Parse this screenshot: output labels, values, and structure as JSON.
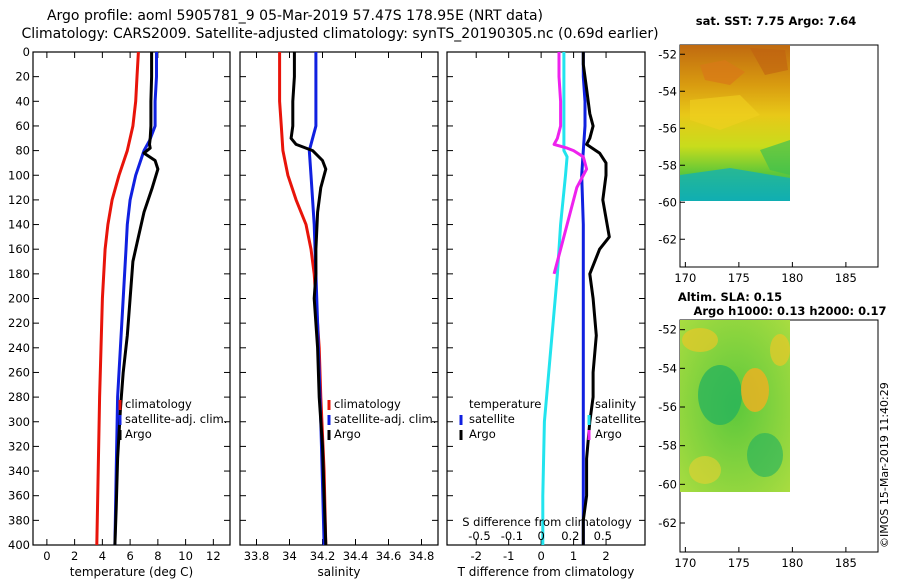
{
  "title_line1": "Argo profile: aoml 5905781_9 05-Mar-2019 57.47S 178.95E (NRT data)",
  "title_line2": "Climatology: CARS2009. Satellite-adjusted climatology: synTS_20190305.nc (0.69d earlier)",
  "credit": "©IMOS 15-Mar-2019 11:40:29",
  "colors": {
    "climatology": "#e8140a",
    "satellite_adj": "#1020e0",
    "argo": "#000000",
    "s_sat": "#22e4ee",
    "s_argo": "#ee22ee"
  },
  "chart_data": [
    {
      "type": "line",
      "name": "temperature-profile",
      "xlabel": "temperature (deg C)",
      "xlim": [
        -1,
        13.2
      ],
      "xticks": [
        0,
        2,
        4,
        6,
        8,
        10,
        12
      ],
      "xtick_labels": [
        "0",
        "2",
        "4",
        "6",
        "8",
        "10",
        "12"
      ],
      "ylim": [
        0,
        400
      ],
      "yticks": [
        0,
        20,
        40,
        60,
        80,
        100,
        120,
        140,
        160,
        180,
        200,
        220,
        240,
        260,
        280,
        300,
        320,
        340,
        360,
        380,
        400
      ],
      "ytick_labels": [
        "0",
        "20",
        "40",
        "60",
        "80",
        "100",
        "120",
        "140",
        "160",
        "180",
        "200",
        "220",
        "240",
        "260",
        "280",
        "300",
        "320",
        "340",
        "360",
        "380",
        "400"
      ],
      "legend": [
        "climatology",
        "satellite-adj. clim.",
        "Argo"
      ],
      "series": [
        {
          "name": "climatology",
          "color": "#e8140a",
          "x": [
            6.6,
            6.5,
            6.4,
            6.3,
            6.2,
            5.8,
            5.2,
            4.7,
            4.4,
            4.2,
            4.0,
            3.9,
            3.8,
            3.7,
            3.6
          ],
          "y": [
            0,
            20,
            40,
            50,
            60,
            80,
            100,
            120,
            140,
            160,
            200,
            240,
            280,
            340,
            400
          ]
        },
        {
          "name": "satellite-adj. clim.",
          "color": "#1020e0",
          "x": [
            7.9,
            7.9,
            7.8,
            7.8,
            7.4,
            7.0,
            6.4,
            6.0,
            5.8,
            5.7,
            5.5,
            5.3,
            5.1,
            5.0,
            4.9
          ],
          "y": [
            0,
            20,
            40,
            60,
            72,
            80,
            100,
            120,
            140,
            160,
            200,
            240,
            280,
            340,
            400
          ]
        },
        {
          "name": "Argo",
          "color": "#000000",
          "x": [
            7.55,
            7.55,
            7.5,
            7.5,
            7.45,
            7.4,
            7.45,
            7.0,
            7.8,
            8.0,
            7.6,
            7.0,
            6.6,
            6.2,
            6.0,
            5.8,
            5.5,
            5.3,
            5.1,
            5.0,
            4.9
          ],
          "y": [
            0,
            20,
            40,
            60,
            70,
            75,
            78,
            82,
            88,
            95,
            110,
            130,
            150,
            170,
            200,
            230,
            260,
            290,
            330,
            370,
            400
          ]
        }
      ]
    },
    {
      "type": "line",
      "name": "salinity-profile",
      "xlabel": "salinity",
      "xlim": [
        33.7,
        34.9
      ],
      "xticks": [
        33.8,
        34.0,
        34.2,
        34.4,
        34.6,
        34.8
      ],
      "xtick_labels": [
        "33.8",
        "34",
        "34.2",
        "34.4",
        "34.6",
        "34.8"
      ],
      "ylim": [
        0,
        400
      ],
      "legend": [
        "climatology",
        "satellite-adj. clim.",
        "Argo"
      ],
      "series": [
        {
          "name": "climatology",
          "color": "#e8140a",
          "x": [
            33.94,
            33.94,
            33.94,
            33.95,
            33.96,
            33.99,
            34.04,
            34.1,
            34.13,
            34.15,
            34.16,
            34.18,
            34.19,
            34.21,
            34.22
          ],
          "y": [
            0,
            20,
            40,
            60,
            80,
            100,
            120,
            140,
            160,
            180,
            200,
            240,
            280,
            340,
            400
          ]
        },
        {
          "name": "satellite-adj. clim.",
          "color": "#1020e0",
          "x": [
            34.16,
            34.16,
            34.16,
            34.16,
            34.14,
            34.12,
            34.13,
            34.15,
            34.16,
            34.17,
            34.18,
            34.19,
            34.2,
            34.21
          ],
          "y": [
            0,
            20,
            40,
            60,
            70,
            80,
            100,
            140,
            180,
            220,
            260,
            300,
            350,
            400
          ]
        },
        {
          "name": "Argo",
          "color": "#000000",
          "x": [
            34.03,
            34.03,
            34.02,
            34.02,
            34.01,
            34.04,
            34.14,
            34.2,
            34.22,
            34.19,
            34.17,
            34.16,
            34.16,
            34.15,
            34.17,
            34.18,
            34.2,
            34.21,
            34.22
          ],
          "y": [
            0,
            20,
            40,
            60,
            70,
            75,
            80,
            88,
            95,
            110,
            130,
            160,
            180,
            200,
            240,
            280,
            320,
            360,
            400
          ]
        }
      ]
    },
    {
      "type": "line",
      "name": "difference-profile",
      "xlabel": "T difference from climatology",
      "x2label": "S difference from climatology",
      "xlim": [
        -2.9,
        3.2
      ],
      "xticks": [
        -2,
        -1,
        0,
        1,
        2
      ],
      "xtick_labels": [
        "-2",
        "-1",
        "0",
        "1",
        "2"
      ],
      "x2_tick_labels": [
        {
          "label": "-0.5",
          "at": -1.9
        },
        {
          "label": "-0.1",
          "at": -0.9
        },
        {
          "label": "0",
          "at": 0.0
        },
        {
          "label": "0.2",
          "at": 0.9
        },
        {
          "label": "0.5",
          "at": 1.9
        }
      ],
      "ylim": [
        0,
        400
      ],
      "legend_left": [
        "temperature",
        "satellite",
        "Argo"
      ],
      "legend_right": [
        "salinity",
        "satellite",
        "Argo"
      ],
      "series": [
        {
          "name": "T satellite",
          "color": "#1020e0",
          "x": [
            1.3,
            1.3,
            1.35,
            1.35,
            1.3,
            1.25,
            1.3,
            1.3,
            1.3,
            1.3,
            1.3
          ],
          "y": [
            0,
            20,
            40,
            60,
            80,
            100,
            140,
            180,
            240,
            320,
            400
          ]
        },
        {
          "name": "T Argo",
          "color": "#000000",
          "x": [
            1.3,
            1.3,
            1.4,
            1.5,
            1.6,
            1.5,
            1.4,
            1.8,
            2.0,
            2.0,
            1.9,
            2.1,
            1.8,
            1.5,
            1.6,
            1.7,
            1.6,
            1.6,
            1.5,
            1.4,
            1.4,
            1.3,
            1.3
          ],
          "y": [
            0,
            10,
            30,
            50,
            60,
            70,
            75,
            82,
            90,
            100,
            120,
            150,
            160,
            180,
            200,
            230,
            260,
            280,
            300,
            330,
            360,
            380,
            400
          ]
        },
        {
          "name": "S satellite",
          "color": "#22e4ee",
          "x": [
            0.7,
            0.7,
            0.7,
            0.7,
            0.7,
            0.8,
            0.75,
            0.6,
            0.5,
            0.3,
            0.1,
            0.05,
            0.05
          ],
          "y": [
            0,
            20,
            40,
            60,
            80,
            85,
            100,
            140,
            180,
            240,
            300,
            360,
            400
          ]
        },
        {
          "name": "S Argo",
          "color": "#ee22ee",
          "x": [
            0.55,
            0.55,
            0.6,
            0.6,
            0.5,
            0.4,
            0.8,
            1.0,
            1.3,
            1.4,
            1.1,
            0.8,
            0.6,
            0.4
          ],
          "y": [
            0,
            20,
            40,
            60,
            70,
            75,
            78,
            80,
            85,
            95,
            110,
            140,
            160,
            180
          ]
        }
      ]
    },
    {
      "type": "heatmap",
      "name": "sst-map",
      "title": "sat. SST: 7.75 Argo: 7.64",
      "xlim": [
        169.5,
        188
      ],
      "ylim": [
        -63.5,
        -51.5
      ],
      "xticks": [
        170,
        175,
        180,
        185
      ],
      "xtick_labels": [
        "170",
        "175",
        "180",
        "185"
      ],
      "yticks": [
        -52,
        -54,
        -56,
        -58,
        -60,
        -62
      ],
      "ytick_labels": [
        "-52",
        "-54",
        "-56",
        "-58",
        "-60",
        "-62"
      ],
      "extent": {
        "lon": [
          170,
          180
        ],
        "lat": [
          -60,
          -52
        ]
      }
    },
    {
      "type": "heatmap",
      "name": "sla-map",
      "title": "Altim. SLA: 0.15",
      "subtitle": "Argo h1000: 0.13 h2000: 0.17",
      "xlim": [
        169.5,
        188
      ],
      "ylim": [
        -63.5,
        -51.5
      ],
      "xticks": [
        170,
        175,
        180,
        185
      ],
      "xtick_labels": [
        "170",
        "175",
        "180",
        "185"
      ],
      "yticks": [
        -52,
        -54,
        -56,
        -58,
        -60,
        -62
      ],
      "ytick_labels": [
        "-52",
        "-54",
        "-56",
        "-58",
        "-60",
        "-62"
      ],
      "extent": {
        "lon": [
          170,
          180
        ],
        "lat": [
          -60,
          -52
        ]
      }
    }
  ]
}
